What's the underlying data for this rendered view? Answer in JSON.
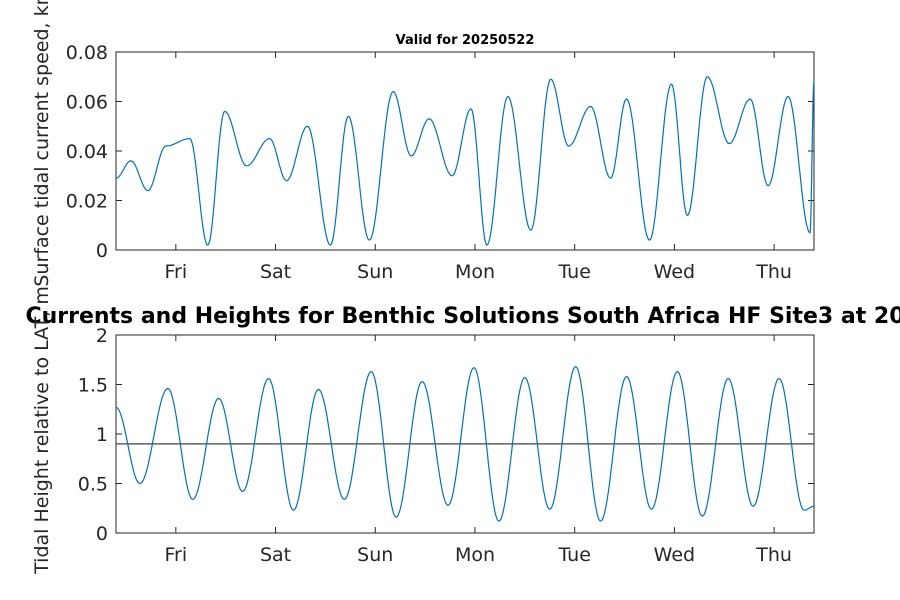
{
  "chart_data": [
    {
      "type": "line",
      "title": "Valid for 20250522",
      "ylabel": "Surface tidal current speed, kn",
      "xlabel": "",
      "ylim": [
        0,
        0.08
      ],
      "yticks": [
        0,
        0.02,
        0.04,
        0.06,
        0.08
      ],
      "ytick_labels": [
        "0",
        "0.02",
        "0.04",
        "0.06",
        "0.08"
      ],
      "xlim": [
        0,
        7
      ],
      "xtick_labels": [
        "Fri",
        "Sat",
        "Sun",
        "Mon",
        "Tue",
        "Wed",
        "Thu"
      ],
      "grid": false,
      "line_color": "#0072bd",
      "series": [
        {
          "x": [
            0.0,
            0.15,
            0.32,
            0.5,
            0.74,
            0.92,
            1.09,
            1.31,
            1.54,
            1.71,
            1.92,
            2.15,
            2.33,
            2.54,
            2.78,
            2.96,
            3.14,
            3.37,
            3.56,
            3.72,
            3.93,
            4.16,
            4.36,
            4.54,
            4.76,
            4.96,
            5.12,
            5.35,
            5.57,
            5.73,
            5.93,
            6.15,
            6.36,
            6.54,
            6.74,
            6.96,
            7.0
          ],
          "values": [
            0.029,
            0.036,
            0.024,
            0.042,
            0.045,
            0.002,
            0.056,
            0.034,
            0.045,
            0.028,
            0.05,
            0.002,
            0.054,
            0.004,
            0.064,
            0.038,
            0.053,
            0.03,
            0.057,
            0.002,
            0.062,
            0.008,
            0.069,
            0.042,
            0.058,
            0.029,
            0.061,
            0.004,
            0.067,
            0.014,
            0.07,
            0.043,
            0.061,
            0.026,
            0.062,
            0.007,
            0.068
          ]
        }
      ]
    },
    {
      "type": "line",
      "title": "Currents and Heights for Benthic Solutions South Africa HF Site3 at 20",
      "ylabel": "Tidal Height relative to LAT, m",
      "xlabel": "",
      "ylim": [
        0,
        2
      ],
      "yticks": [
        0,
        0.5,
        1,
        1.5,
        2
      ],
      "ytick_labels": [
        "0",
        "0.5",
        "1",
        "1.5",
        "2"
      ],
      "xlim": [
        0,
        7
      ],
      "xtick_labels": [
        "Fri",
        "Sat",
        "Sun",
        "Mon",
        "Tue",
        "Wed",
        "Thu"
      ],
      "grid": false,
      "line_color": "#0072bd",
      "reference_line": {
        "y": 0.9,
        "color": "#404040"
      },
      "series": [
        {
          "x": [
            0.0,
            0.24,
            0.52,
            0.77,
            1.03,
            1.27,
            1.53,
            1.78,
            2.03,
            2.29,
            2.56,
            2.81,
            3.07,
            3.33,
            3.59,
            3.84,
            4.1,
            4.35,
            4.61,
            4.86,
            5.12,
            5.37,
            5.63,
            5.88,
            6.14,
            6.39,
            6.65,
            6.9,
            7.0
          ],
          "values": [
            1.27,
            0.5,
            1.46,
            0.34,
            1.36,
            0.42,
            1.56,
            0.23,
            1.45,
            0.34,
            1.63,
            0.16,
            1.53,
            0.28,
            1.67,
            0.12,
            1.57,
            0.24,
            1.68,
            0.12,
            1.58,
            0.24,
            1.63,
            0.17,
            1.56,
            0.27,
            1.56,
            0.23,
            0.27
          ]
        }
      ]
    }
  ]
}
